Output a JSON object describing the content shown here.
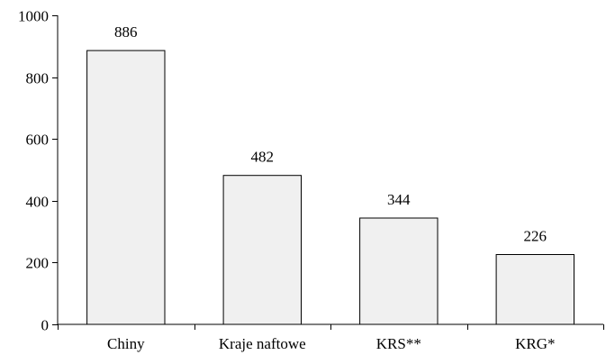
{
  "chart_data": {
    "type": "bar",
    "categories": [
      "Chiny",
      "Kraje naftowe",
      "KRS**",
      "KRG*"
    ],
    "values": [
      886,
      482,
      344,
      226
    ],
    "data_labels": [
      "886",
      "482",
      "344",
      "226"
    ],
    "ylim": [
      0,
      1000
    ],
    "yticks": [
      0,
      200,
      400,
      600,
      800,
      1000
    ],
    "ytick_labels": [
      "0",
      "200",
      "400",
      "600",
      "800",
      "1000"
    ],
    "grid": false,
    "legend": "none",
    "colors": {
      "bar_fill": "#f0f0f0",
      "bar_stroke": "#000000",
      "axis": "#000000"
    }
  }
}
